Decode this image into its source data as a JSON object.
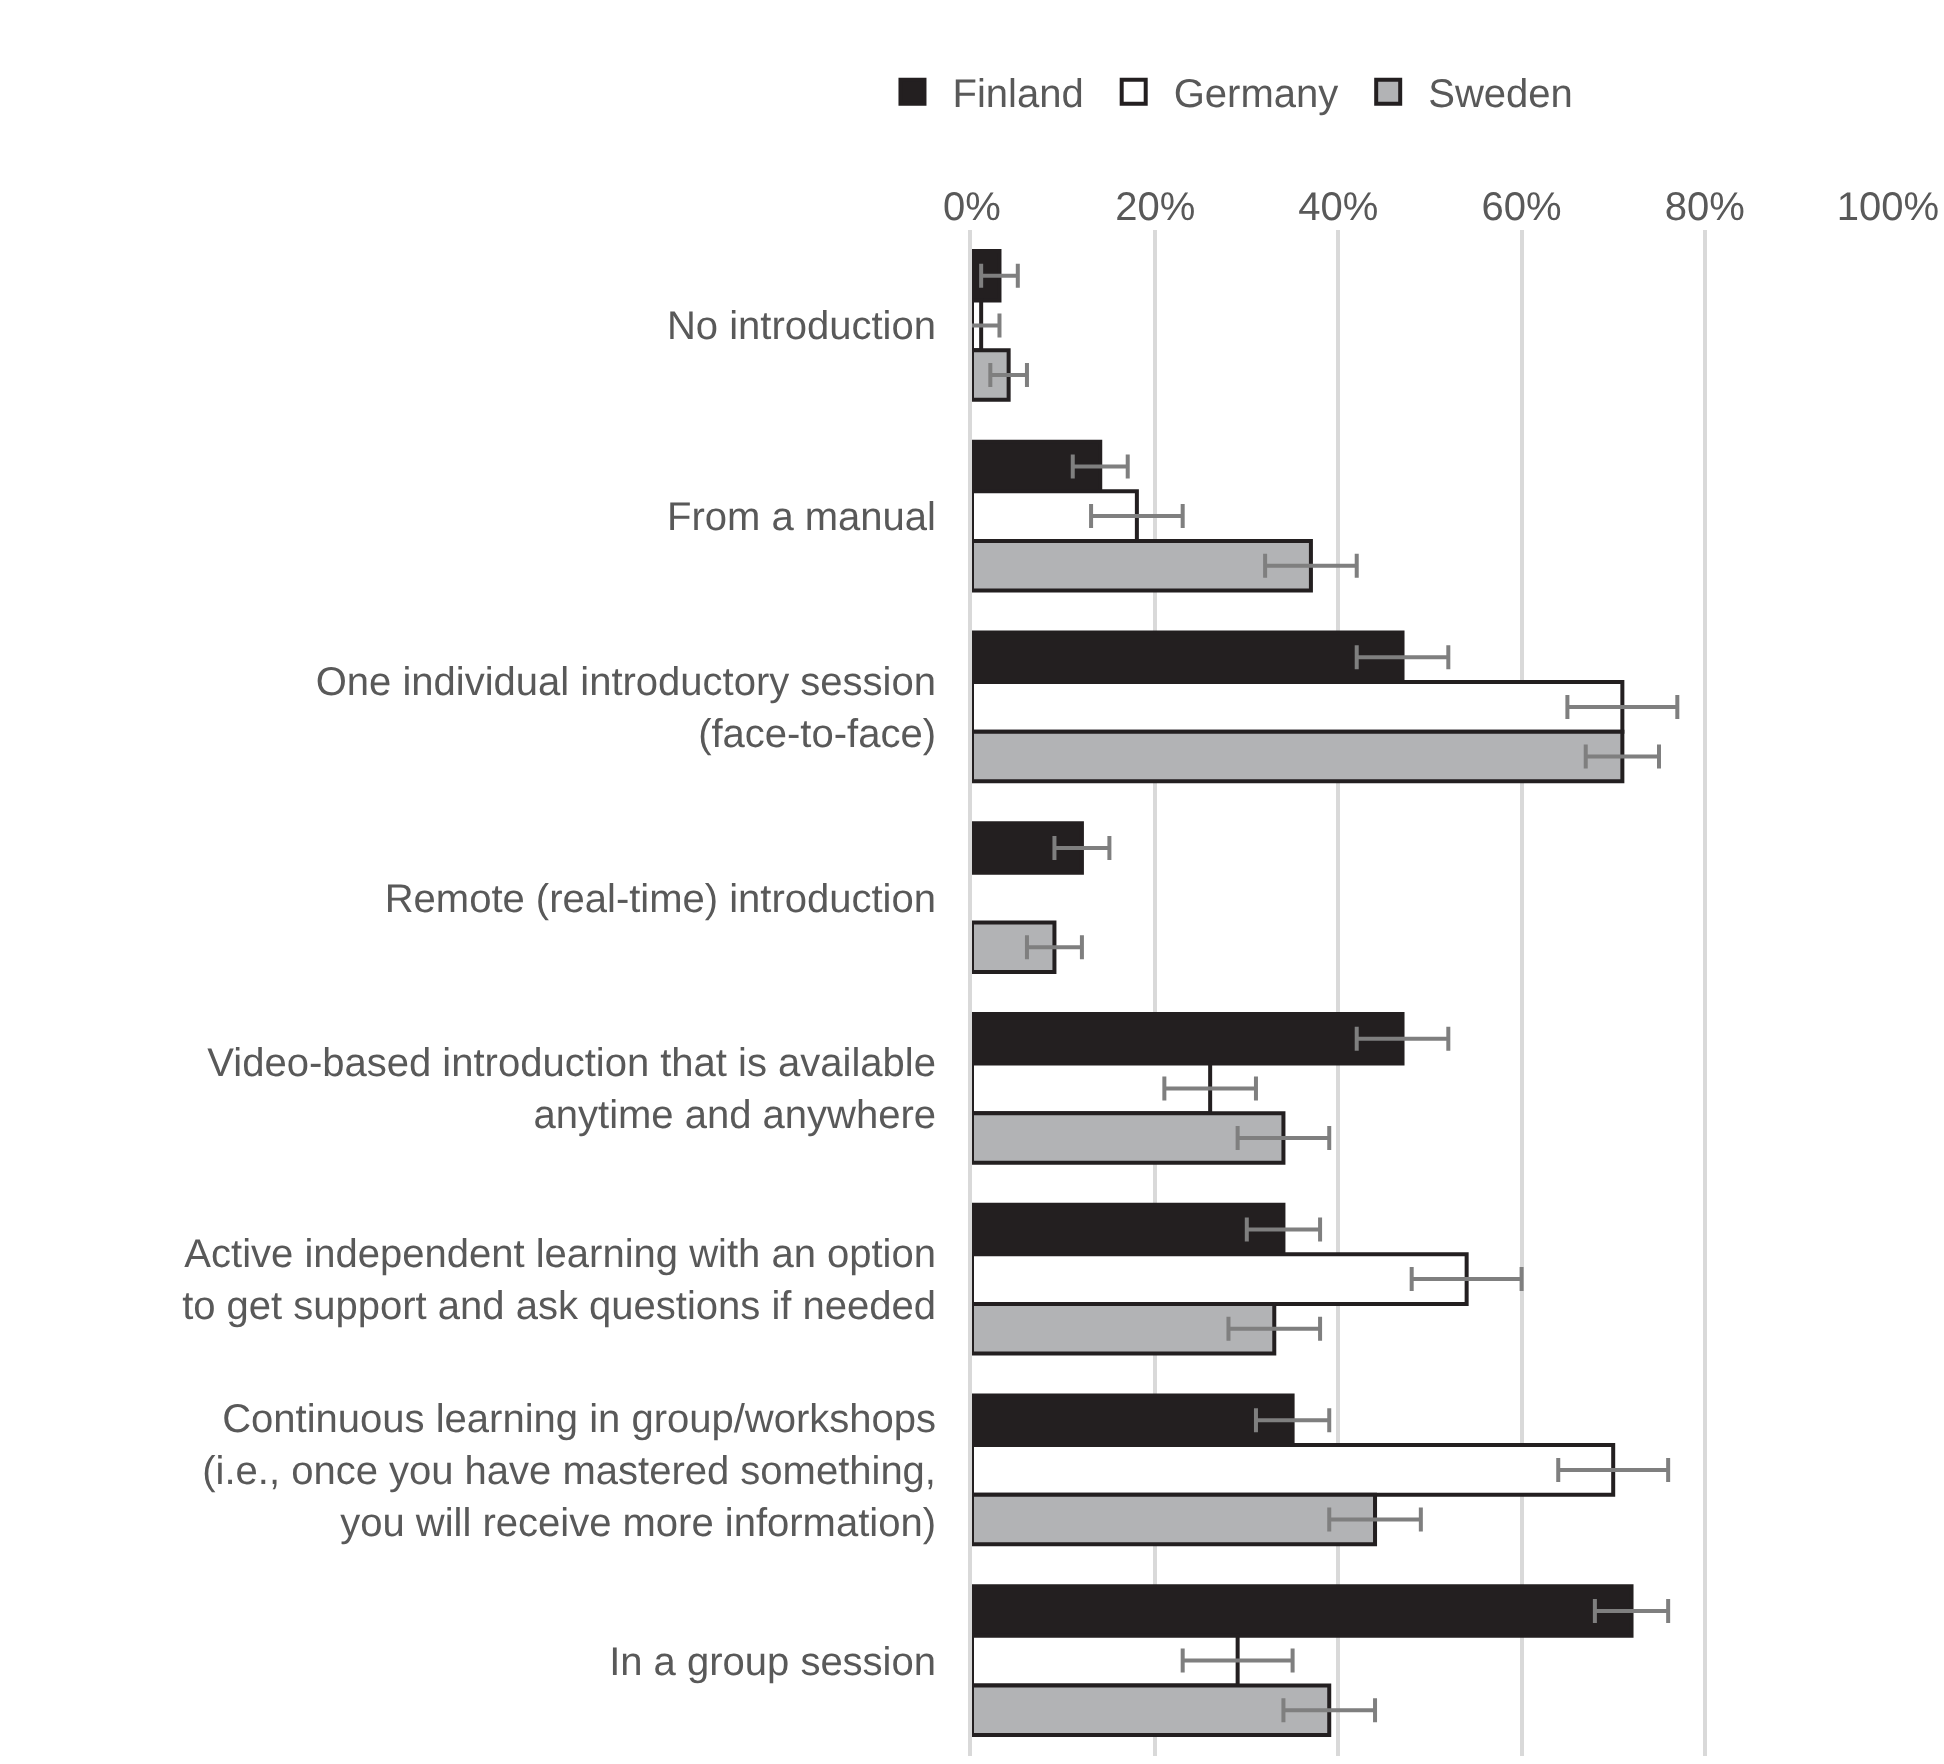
{
  "chart_data": {
    "type": "bar",
    "orientation": "horizontal",
    "categories": [
      "No introduction",
      "From a manual",
      "One individual introductory session (face-to-face)",
      "Remote (real-time) introduction",
      "Video-based introduction that is available anytime and anywhere",
      "Active independent learning with an option to get support and ask questions if needed",
      "Continuous learning in group/workshops (i.e., once you have mastered something, you will receive more information)",
      "In a group session"
    ],
    "series": [
      {
        "name": "Finland",
        "color": "#231f20",
        "values": [
          3,
          14,
          47,
          12,
          47,
          34,
          35,
          72
        ],
        "errors": [
          2,
          3,
          5,
          3,
          5,
          4,
          4,
          4
        ]
      },
      {
        "name": "Germany",
        "color": "#ffffff",
        "values": [
          1,
          18,
          71,
          null,
          26,
          54,
          70,
          29
        ],
        "errors": [
          2,
          5,
          6,
          null,
          5,
          6,
          6,
          6
        ]
      },
      {
        "name": "Sweden",
        "color": "#b2b3b5",
        "values": [
          4,
          37,
          71,
          9,
          34,
          33,
          44,
          39
        ],
        "errors": [
          2,
          5,
          4,
          3,
          5,
          5,
          5,
          5
        ]
      }
    ],
    "xlim": [
      0,
      100
    ],
    "xticks": [
      {
        "value": 0,
        "label": "0%"
      },
      {
        "value": 20,
        "label": "20%"
      },
      {
        "value": 40,
        "label": "40%"
      },
      {
        "value": 60,
        "label": "60%"
      },
      {
        "value": 80,
        "label": "80%"
      },
      {
        "value": 100,
        "label": "100%"
      }
    ],
    "grid": "x",
    "legend": "top"
  }
}
